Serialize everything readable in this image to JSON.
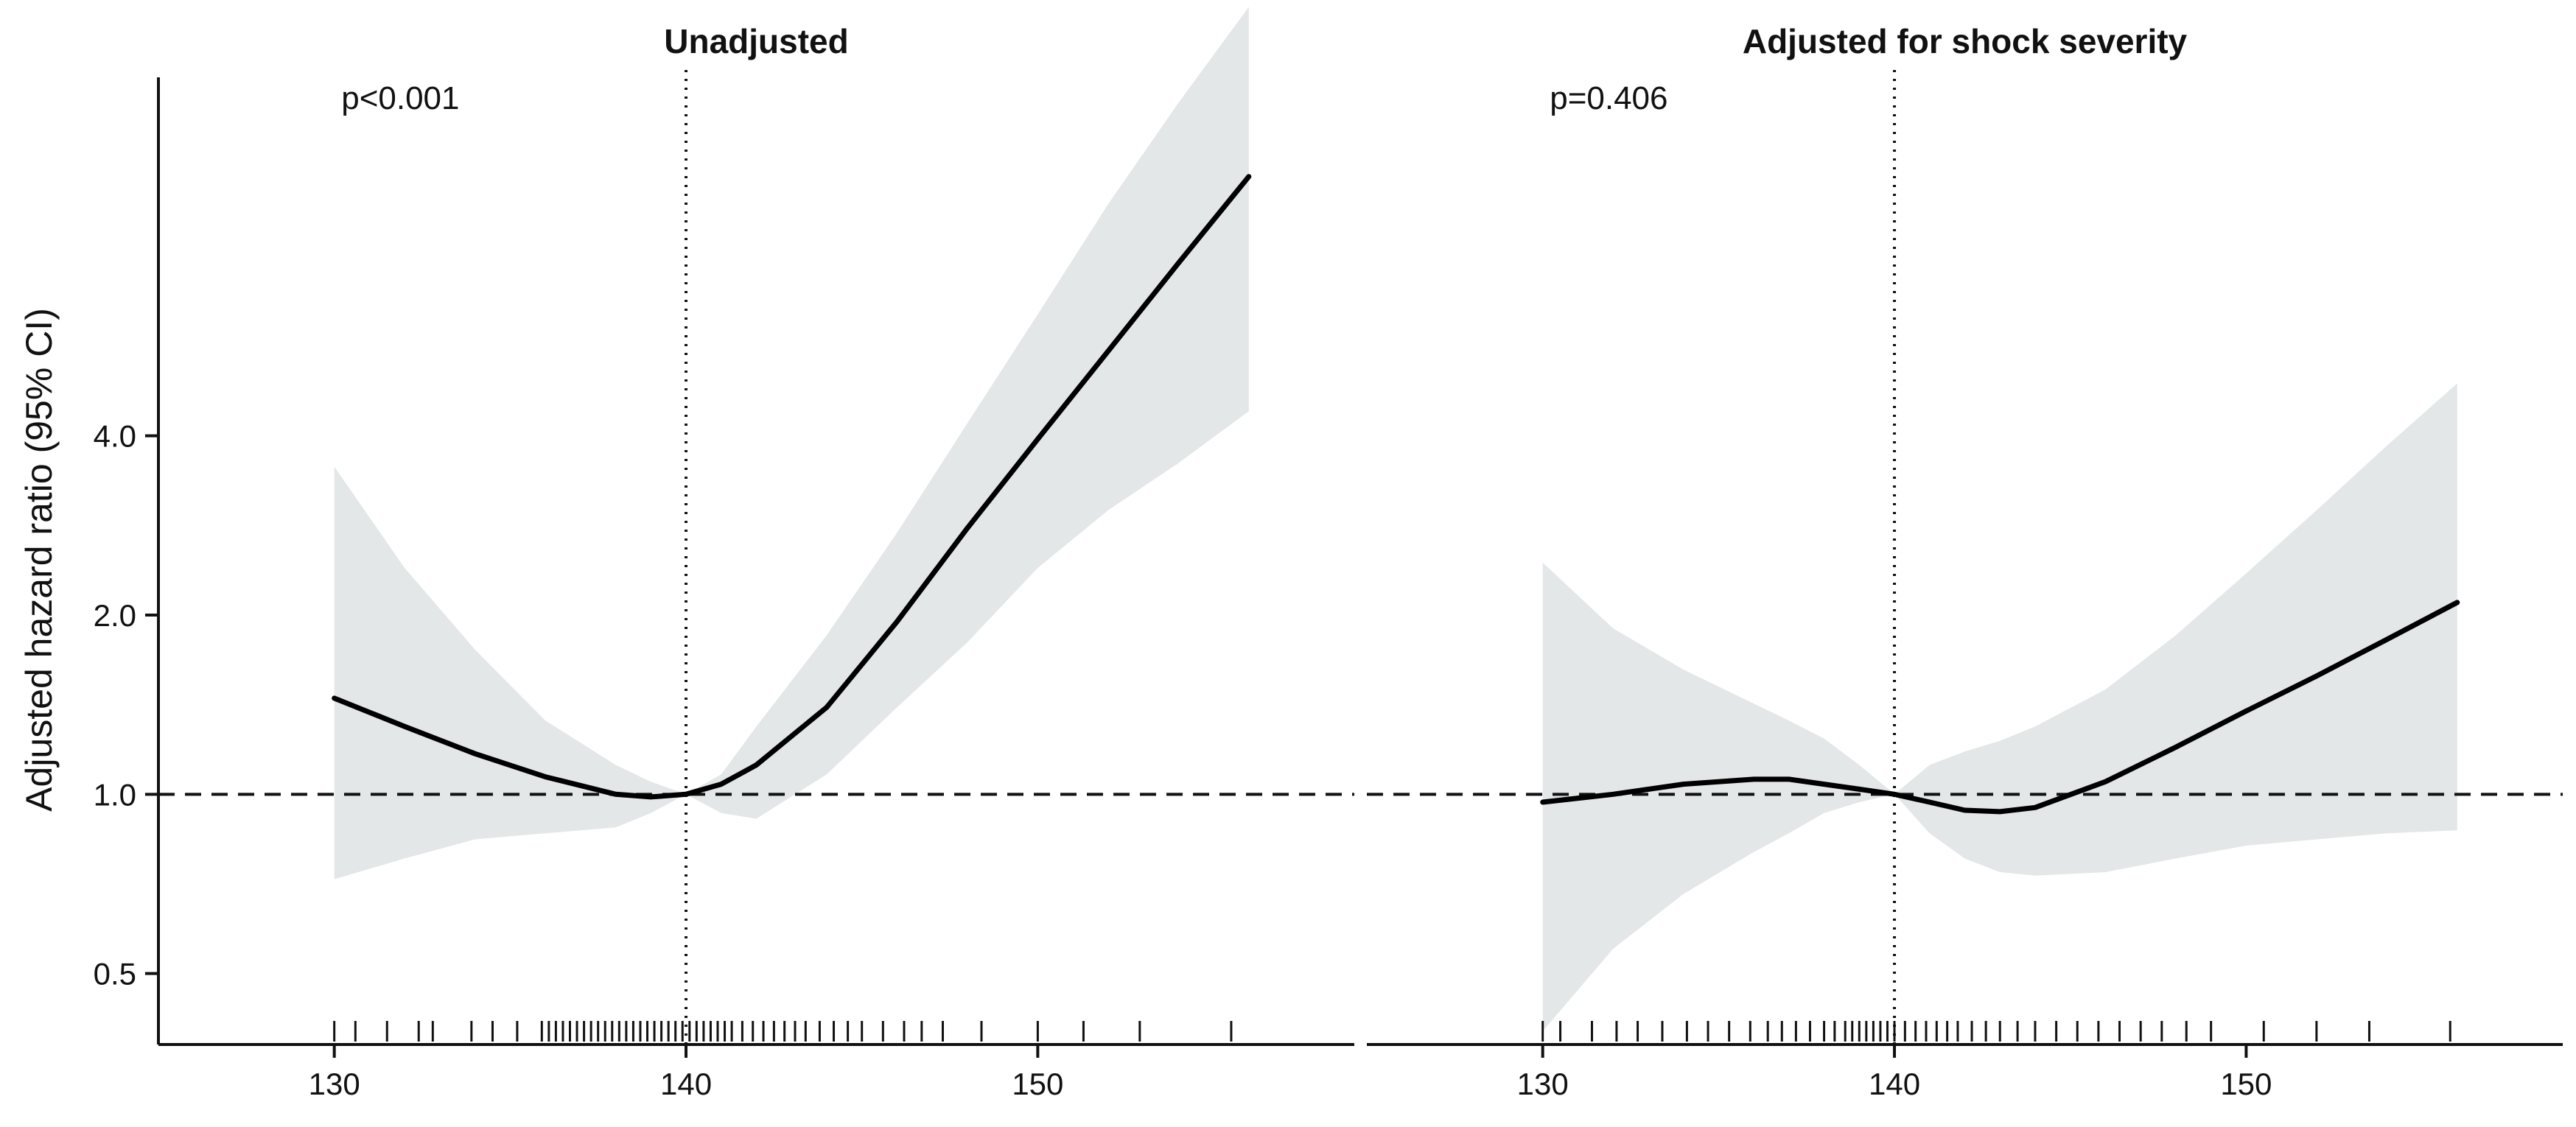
{
  "figure": {
    "ylabel": "Adjusted hazard ratio (95% CI)"
  },
  "chart_data": [
    {
      "type": "line",
      "title": "Unadjusted",
      "annotation": "p<0.001",
      "xlabel": "",
      "ylabel": "Adjusted hazard ratio (95% CI)",
      "y_scale": "log",
      "xlim": [
        125,
        159
      ],
      "ylim": [
        0.38,
        16
      ],
      "x_ticks": [
        130,
        140,
        150
      ],
      "y_ticks": [
        0.5,
        1.0,
        2.0,
        4.0
      ],
      "y_tick_labels": [
        "0.5",
        "1.0",
        "2.0",
        "4.0"
      ],
      "reference_line": {
        "y": 1.0,
        "style": "dashed"
      },
      "vertical_line": {
        "x": 140,
        "style": "dotted"
      },
      "series": [
        {
          "x": [
            130,
            132,
            134,
            136,
            138,
            139,
            140,
            141,
            142,
            144,
            146,
            148,
            150,
            152,
            154,
            156
          ],
          "y": [
            1.45,
            1.3,
            1.17,
            1.07,
            1.0,
            0.99,
            1.0,
            1.04,
            1.12,
            1.4,
            1.95,
            2.8,
            3.95,
            5.55,
            7.8,
            10.9
          ],
          "lower": [
            0.72,
            0.78,
            0.84,
            0.86,
            0.88,
            0.93,
            1.0,
            0.93,
            0.91,
            1.08,
            1.4,
            1.8,
            2.4,
            3.0,
            3.6,
            4.4
          ],
          "upper": [
            3.55,
            2.4,
            1.75,
            1.33,
            1.12,
            1.05,
            1.0,
            1.08,
            1.3,
            1.85,
            2.75,
            4.2,
            6.4,
            9.8,
            14.5,
            21.0
          ]
        }
      ],
      "rug_x": [
        130.0,
        130.6,
        131.5,
        132.4,
        132.8,
        133.9,
        134.5,
        135.2,
        135.9,
        136.1,
        136.3,
        136.5,
        136.7,
        136.9,
        137.1,
        137.3,
        137.5,
        137.7,
        137.9,
        138.1,
        138.3,
        138.5,
        138.7,
        138.9,
        139.1,
        139.3,
        139.5,
        139.7,
        139.9,
        140.1,
        140.3,
        140.5,
        140.7,
        140.9,
        141.1,
        141.3,
        141.6,
        141.9,
        142.2,
        142.5,
        142.8,
        143.1,
        143.4,
        143.8,
        144.2,
        144.6,
        145.0,
        145.6,
        146.2,
        146.7,
        147.3,
        148.4,
        150.0,
        151.3,
        152.9,
        155.5
      ]
    },
    {
      "type": "line",
      "title": "Adjusted for shock severity",
      "annotation": "p=0.406",
      "xlabel": "",
      "ylabel": "",
      "y_scale": "log",
      "xlim": [
        125,
        159
      ],
      "ylim": [
        0.38,
        16
      ],
      "x_ticks": [
        130,
        140,
        150
      ],
      "reference_line": {
        "y": 1.0,
        "style": "dashed"
      },
      "vertical_line": {
        "x": 140,
        "style": "dotted"
      },
      "series": [
        {
          "x": [
            130,
            132,
            134,
            136,
            137,
            138,
            139,
            140,
            141,
            142,
            143,
            144,
            146,
            148,
            150,
            152,
            154,
            156
          ],
          "y": [
            0.97,
            1.0,
            1.04,
            1.06,
            1.06,
            1.04,
            1.02,
            1.0,
            0.97,
            0.94,
            0.935,
            0.95,
            1.05,
            1.2,
            1.38,
            1.58,
            1.82,
            2.1
          ],
          "lower": [
            0.4,
            0.55,
            0.68,
            0.8,
            0.86,
            0.93,
            0.97,
            1.0,
            0.86,
            0.78,
            0.74,
            0.73,
            0.74,
            0.78,
            0.82,
            0.84,
            0.86,
            0.87
          ],
          "upper": [
            2.45,
            1.9,
            1.62,
            1.42,
            1.33,
            1.24,
            1.12,
            1.0,
            1.12,
            1.18,
            1.23,
            1.3,
            1.5,
            1.85,
            2.35,
            3.0,
            3.85,
            4.9
          ]
        }
      ],
      "rug_x": [
        130.0,
        130.5,
        131.4,
        132.1,
        132.7,
        133.4,
        134.1,
        134.7,
        135.3,
        135.9,
        136.4,
        136.8,
        137.2,
        137.6,
        138.0,
        138.3,
        138.6,
        138.8,
        139.0,
        139.2,
        139.4,
        139.6,
        139.8,
        140.0,
        140.3,
        140.6,
        140.9,
        141.2,
        141.5,
        141.8,
        142.2,
        142.6,
        143.0,
        143.5,
        144.0,
        144.6,
        145.2,
        145.8,
        146.4,
        147.0,
        147.6,
        148.3,
        149.0,
        150.5,
        152.0,
        153.5,
        155.8
      ]
    }
  ]
}
